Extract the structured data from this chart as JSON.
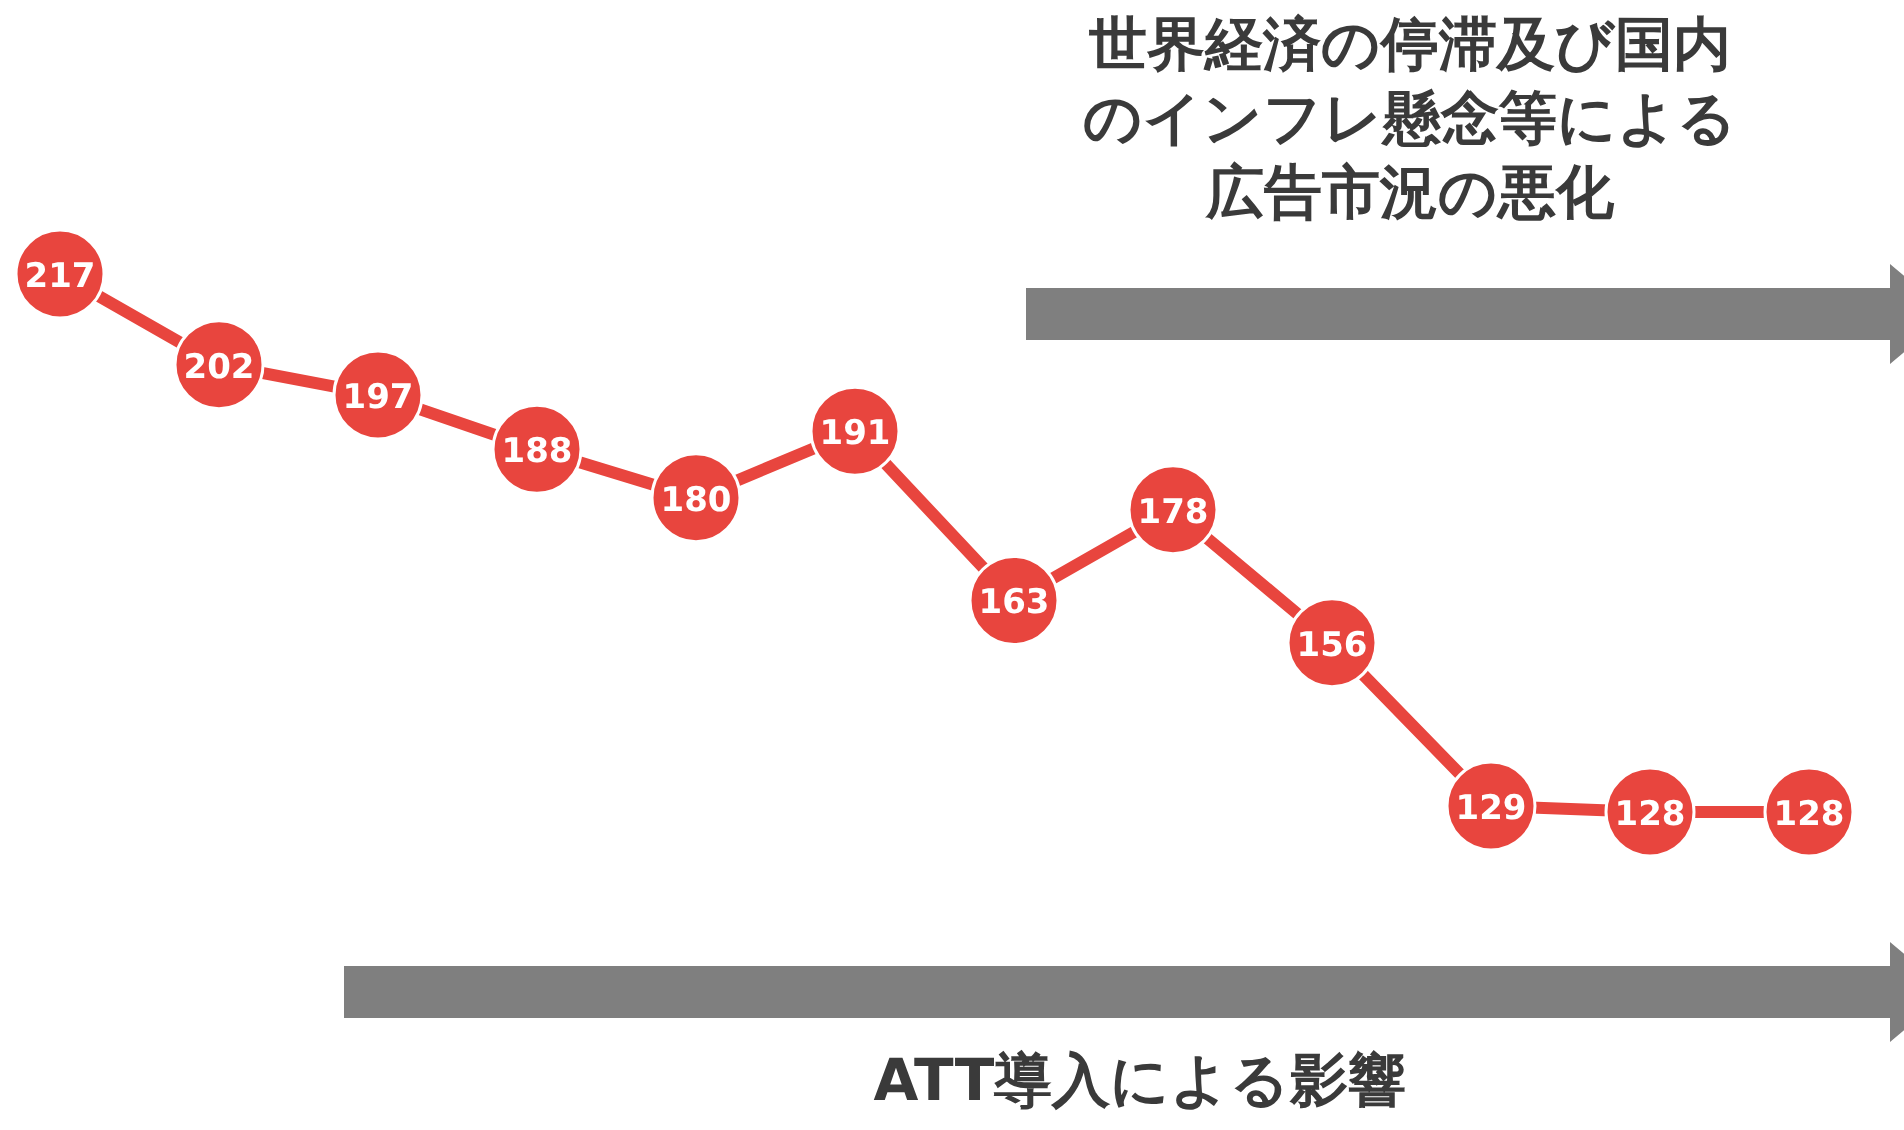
{
  "chart_data": {
    "type": "line",
    "categories": [
      null,
      null,
      null,
      null,
      null,
      null,
      null,
      null,
      null,
      null,
      null,
      null
    ],
    "series": [
      {
        "color": "#e8453e",
        "values": [
          217,
          202,
          197,
          188,
          180,
          191,
          163,
          178,
          156,
          129,
          128,
          128
        ]
      }
    ],
    "marker": "circle",
    "data_labels": true,
    "annotations": [
      "世界経済の停滞及び国内のインフレ懸念等による広告市況の悪化",
      "ATT導入による影響"
    ]
  }
}
